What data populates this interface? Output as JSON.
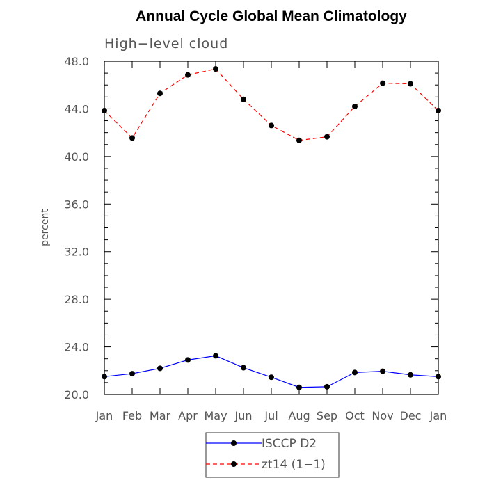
{
  "chart_data": {
    "type": "line",
    "title": "Annual Cycle Global Mean Climatology",
    "subtitle": "High−level cloud",
    "ylabel": "percent",
    "xlabel": "",
    "categories": [
      "Jan",
      "Feb",
      "Mar",
      "Apr",
      "May",
      "Jun",
      "Jul",
      "Aug",
      "Sep",
      "Oct",
      "Nov",
      "Dec",
      "Jan"
    ],
    "ylim": [
      20.0,
      48.0
    ],
    "yticks": [
      "20.0",
      "24.0",
      "28.0",
      "32.0",
      "36.0",
      "40.0",
      "44.0",
      "48.0"
    ],
    "grid": false,
    "legend_position": "bottom-center",
    "series": [
      {
        "name": "ISCCP D2",
        "color": "#0000ff",
        "line_style": "solid",
        "marker": "filled-circle",
        "values": [
          21.5,
          21.75,
          22.2,
          22.9,
          23.25,
          22.25,
          21.45,
          20.6,
          20.65,
          21.85,
          21.95,
          21.65,
          21.5
        ]
      },
      {
        "name": "zt14 (1−1)",
        "color": "#ff0000",
        "line_style": "dashed",
        "marker": "filled-circle",
        "values": [
          43.85,
          41.55,
          45.3,
          46.85,
          47.35,
          44.8,
          42.6,
          41.35,
          41.65,
          44.2,
          46.15,
          46.1,
          43.85
        ]
      }
    ]
  }
}
